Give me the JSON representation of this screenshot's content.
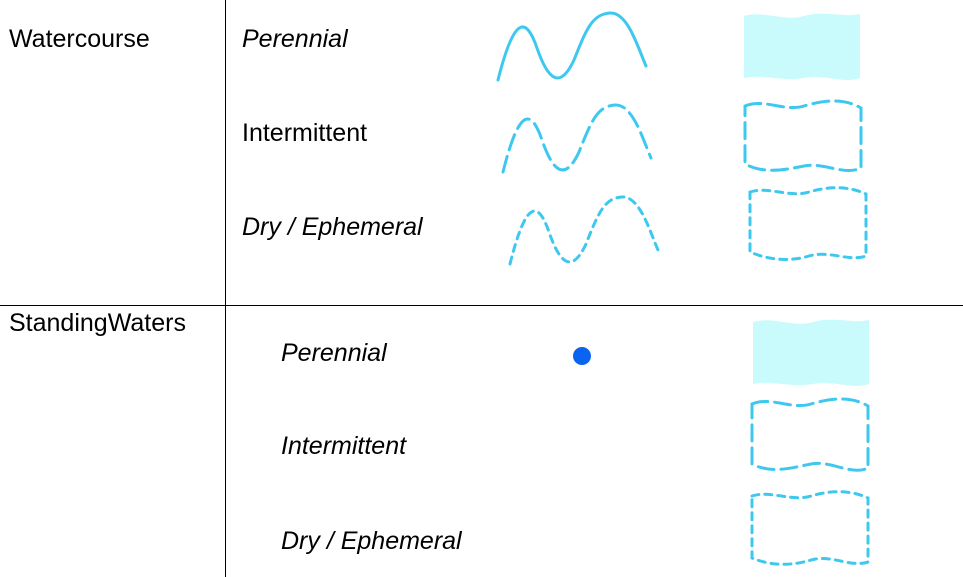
{
  "colors": {
    "line": "#3ec8f0",
    "fill": "#c9fbfd",
    "dot": "#0b64f0",
    "rule": "#000000"
  },
  "categories": [
    {
      "label": "Watercourse",
      "rows": [
        {
          "label": "Perennial",
          "italic": true,
          "line_symbol": "solid",
          "area_symbol": "filled"
        },
        {
          "label": "Intermittent",
          "italic": false,
          "line_symbol": "dashed",
          "area_symbol": "dashed-outline"
        },
        {
          "label": "Dry / Ephemeral",
          "italic": true,
          "line_symbol": "short-dashed",
          "area_symbol": "short-dashed-outline"
        }
      ]
    },
    {
      "label": "StandingWaters",
      "rows": [
        {
          "label": "Perennial",
          "italic": true,
          "point_symbol": "dot",
          "area_symbol": "filled"
        },
        {
          "label": "Intermittent",
          "italic": true,
          "area_symbol": "dashed-outline"
        },
        {
          "label": "Dry / Ephemeral",
          "italic": true,
          "area_symbol": "short-dashed-outline"
        }
      ]
    }
  ]
}
